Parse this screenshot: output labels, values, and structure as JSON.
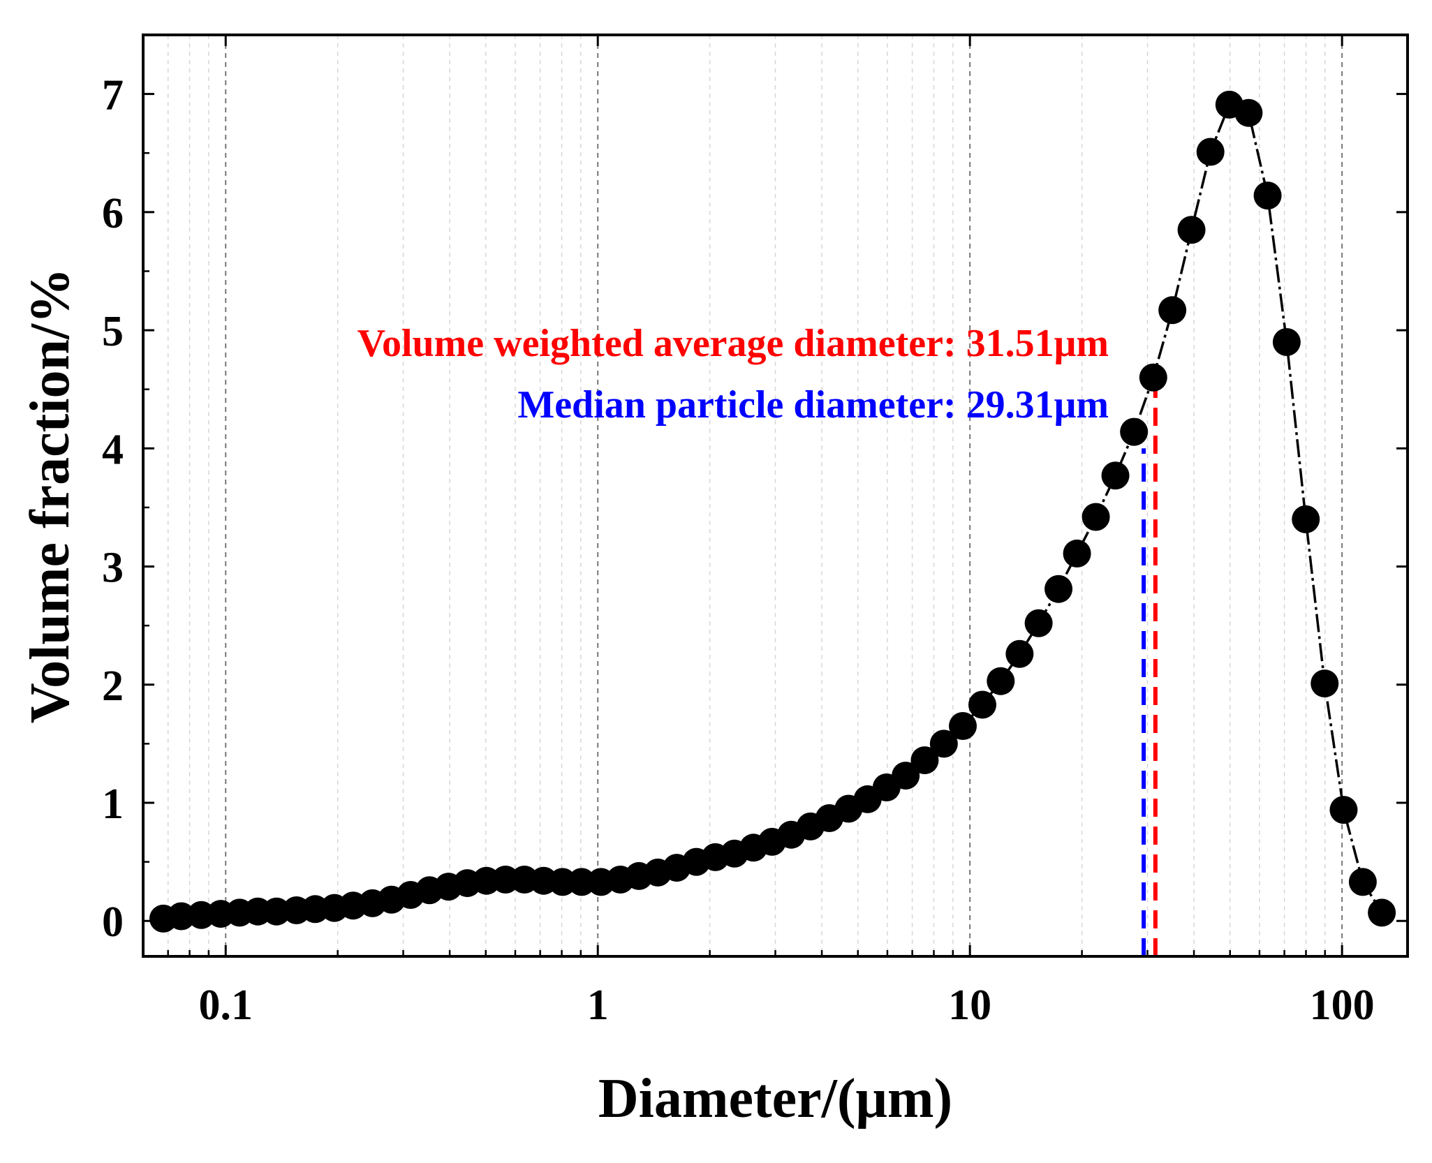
{
  "chart_data": {
    "type": "scatter",
    "title": "",
    "xlabel": "Diameter/(μm)",
    "ylabel": "Volume fraction/%",
    "xscale": "log",
    "xlim": [
      0.06,
      150
    ],
    "ylim": [
      -0.3,
      7.5
    ],
    "grid": true,
    "x_ticks": [
      0.1,
      1,
      10,
      100
    ],
    "x_tick_labels": [
      "0.1",
      "1",
      "10",
      "100"
    ],
    "y_ticks": [
      0,
      1,
      2,
      3,
      4,
      5,
      6,
      7
    ],
    "y_tick_labels": [
      "0",
      "1",
      "2",
      "3",
      "4",
      "5",
      "6",
      "7"
    ],
    "series": [
      {
        "name": "Volume fraction",
        "color": "#000000",
        "marker": "circle",
        "line": "dash-dot",
        "x": [
          0.068,
          0.076,
          0.086,
          0.097,
          0.109,
          0.122,
          0.137,
          0.155,
          0.174,
          0.196,
          0.22,
          0.248,
          0.279,
          0.314,
          0.353,
          0.397,
          0.446,
          0.502,
          0.565,
          0.635,
          0.715,
          0.804,
          0.905,
          1.02,
          1.15,
          1.29,
          1.45,
          1.63,
          1.84,
          2.07,
          2.33,
          2.62,
          2.94,
          3.31,
          3.73,
          4.19,
          4.72,
          5.31,
          5.97,
          6.72,
          7.56,
          8.51,
          9.57,
          10.8,
          12.1,
          13.6,
          15.3,
          17.3,
          19.4,
          21.8,
          24.6,
          27.6,
          31.1,
          35.0,
          39.4,
          44.3,
          49.8,
          56.1,
          63.1,
          71.0,
          79.9,
          89.8,
          101.0,
          113.7,
          127.9
        ],
        "values": [
          0.02,
          0.04,
          0.05,
          0.06,
          0.07,
          0.08,
          0.08,
          0.09,
          0.1,
          0.11,
          0.13,
          0.15,
          0.18,
          0.22,
          0.26,
          0.29,
          0.32,
          0.34,
          0.35,
          0.35,
          0.34,
          0.33,
          0.33,
          0.33,
          0.35,
          0.38,
          0.41,
          0.45,
          0.5,
          0.54,
          0.57,
          0.62,
          0.67,
          0.73,
          0.8,
          0.87,
          0.95,
          1.03,
          1.13,
          1.23,
          1.36,
          1.5,
          1.65,
          1.83,
          2.03,
          2.26,
          2.52,
          2.81,
          3.11,
          3.42,
          3.77,
          4.14,
          4.6,
          5.17,
          5.85,
          6.51,
          6.91,
          6.84,
          6.14,
          4.9,
          3.4,
          2.01,
          0.94,
          0.33,
          0.07
        ]
      }
    ],
    "vlines": [
      {
        "name": "Volume weighted average diameter",
        "x": 31.51,
        "y_top": 4.5,
        "color": "#ff0000",
        "style": "dashed"
      },
      {
        "name": "Median particle diameter",
        "x": 29.31,
        "y_top": 4.0,
        "color": "#0000ff",
        "style": "dashed"
      }
    ],
    "annotations": [
      {
        "text": "Volume weighted average diameter: 31.51μm",
        "color": "#ff0000"
      },
      {
        "text": "Median particle diameter: 29.31μm",
        "color": "#0000ff"
      }
    ]
  }
}
